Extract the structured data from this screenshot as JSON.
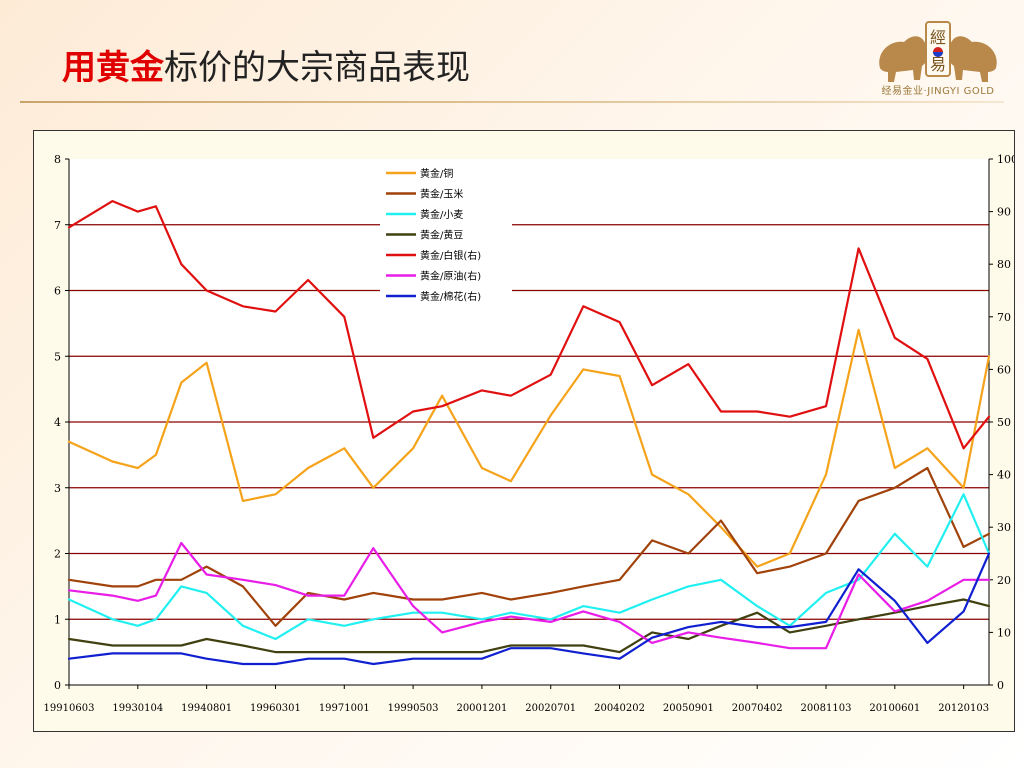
{
  "title": {
    "highlight": "用黄金",
    "rest": "标价的大宗商品表现"
  },
  "logo": {
    "mark": "經易",
    "caption": "经易金业·JINGYI GOLD",
    "icon": "bull-bear-logo-icon"
  },
  "colors": {
    "title_highlight": "#e00000",
    "gridline": "#8b0000",
    "plot_background": "#ffffff",
    "frame_background": "#fffbea"
  },
  "chart_data": {
    "type": "line",
    "title": "",
    "xlabel": "",
    "ylabel": "",
    "grid": true,
    "legend_position": "top-center",
    "left_axis": {
      "range": [
        0,
        8
      ],
      "ticks": [
        0,
        1,
        2,
        3,
        4,
        5,
        6,
        7,
        8
      ]
    },
    "right_axis": {
      "range": [
        0,
        100
      ],
      "ticks": [
        0,
        10,
        20,
        30,
        40,
        50,
        60,
        70,
        80,
        90,
        100
      ]
    },
    "x": [
      "1991-06",
      "1992-06",
      "1993-01",
      "1993-06",
      "1994-01",
      "1994-08",
      "1995-06",
      "1996-03",
      "1996-12",
      "1997-10",
      "1998-06",
      "1999-05",
      "2000-01",
      "2000-12",
      "2001-08",
      "2002-07",
      "2003-04",
      "2004-02",
      "2004-11",
      "2005-09",
      "2006-06",
      "2007-04",
      "2008-01",
      "2008-11",
      "2009-08",
      "2010-06",
      "2011-03",
      "2012-01",
      "2012-08"
    ],
    "x_tick_labels": [
      "19910603",
      "19930104",
      "19940801",
      "19960301",
      "19971001",
      "19990503",
      "20001201",
      "20020701",
      "20040202",
      "20050901",
      "20070402",
      "20081103",
      "20100601",
      "20120103"
    ],
    "series": [
      {
        "name": "黄金/铜",
        "axis": "left",
        "color": "#f5a31a",
        "values": [
          3.7,
          3.4,
          3.3,
          3.5,
          4.6,
          4.9,
          2.8,
          2.9,
          3.3,
          3.6,
          3.0,
          3.6,
          4.4,
          3.3,
          3.1,
          4.1,
          4.8,
          4.7,
          3.2,
          2.9,
          2.4,
          1.8,
          2.0,
          3.2,
          5.4,
          3.3,
          3.6,
          3.0,
          5.0
        ]
      },
      {
        "name": "黄金/玉米",
        "axis": "left",
        "color": "#a0420a",
        "values": [
          1.6,
          1.5,
          1.5,
          1.6,
          1.6,
          1.8,
          1.5,
          0.9,
          1.4,
          1.3,
          1.4,
          1.3,
          1.3,
          1.4,
          1.3,
          1.4,
          1.5,
          1.6,
          2.2,
          2.0,
          2.5,
          1.7,
          1.8,
          2.0,
          2.8,
          3.0,
          3.3,
          2.1,
          2.3
        ]
      },
      {
        "name": "黄金/小麦",
        "axis": "left",
        "color": "#22f0f0",
        "values": [
          1.3,
          1.0,
          0.9,
          1.0,
          1.5,
          1.4,
          0.9,
          0.7,
          1.0,
          0.9,
          1.0,
          1.1,
          1.1,
          1.0,
          1.1,
          1.0,
          1.2,
          1.1,
          1.3,
          1.5,
          1.6,
          1.2,
          0.9,
          1.4,
          1.6,
          2.3,
          1.8,
          2.9,
          2.0
        ]
      },
      {
        "name": "黄金/黄豆",
        "axis": "left",
        "color": "#404010",
        "values": [
          0.7,
          0.6,
          0.6,
          0.6,
          0.6,
          0.7,
          0.6,
          0.5,
          0.5,
          0.5,
          0.5,
          0.5,
          0.5,
          0.5,
          0.6,
          0.6,
          0.6,
          0.5,
          0.8,
          0.7,
          0.9,
          1.1,
          0.8,
          0.9,
          1.0,
          1.1,
          1.2,
          1.3,
          1.2
        ]
      },
      {
        "name": "黄金/白银(右)",
        "axis": "right",
        "color": "#e01010",
        "values": [
          87,
          92,
          90,
          91,
          80,
          75,
          72,
          71,
          77,
          70,
          47,
          52,
          53,
          56,
          55,
          59,
          72,
          69,
          57,
          61,
          52,
          52,
          51,
          53,
          83,
          66,
          62,
          45,
          51
        ]
      },
      {
        "name": "黄金/原油(右)",
        "axis": "right",
        "color": "#e81ee8",
        "values": [
          18,
          17,
          16,
          17,
          27,
          21,
          20,
          19,
          17,
          17,
          26,
          15,
          10,
          12,
          13,
          12,
          14,
          12,
          8,
          10,
          9,
          8,
          7,
          7,
          21,
          14,
          16,
          20,
          20
        ]
      },
      {
        "name": "黄金/棉花(右)",
        "axis": "right",
        "color": "#1020d0",
        "values": [
          5,
          6,
          6,
          6,
          6,
          5,
          4,
          4,
          5,
          5,
          4,
          5,
          5,
          5,
          7,
          7,
          6,
          5,
          9,
          11,
          12,
          11,
          11,
          12,
          22,
          16,
          8,
          14,
          25
        ]
      }
    ]
  }
}
